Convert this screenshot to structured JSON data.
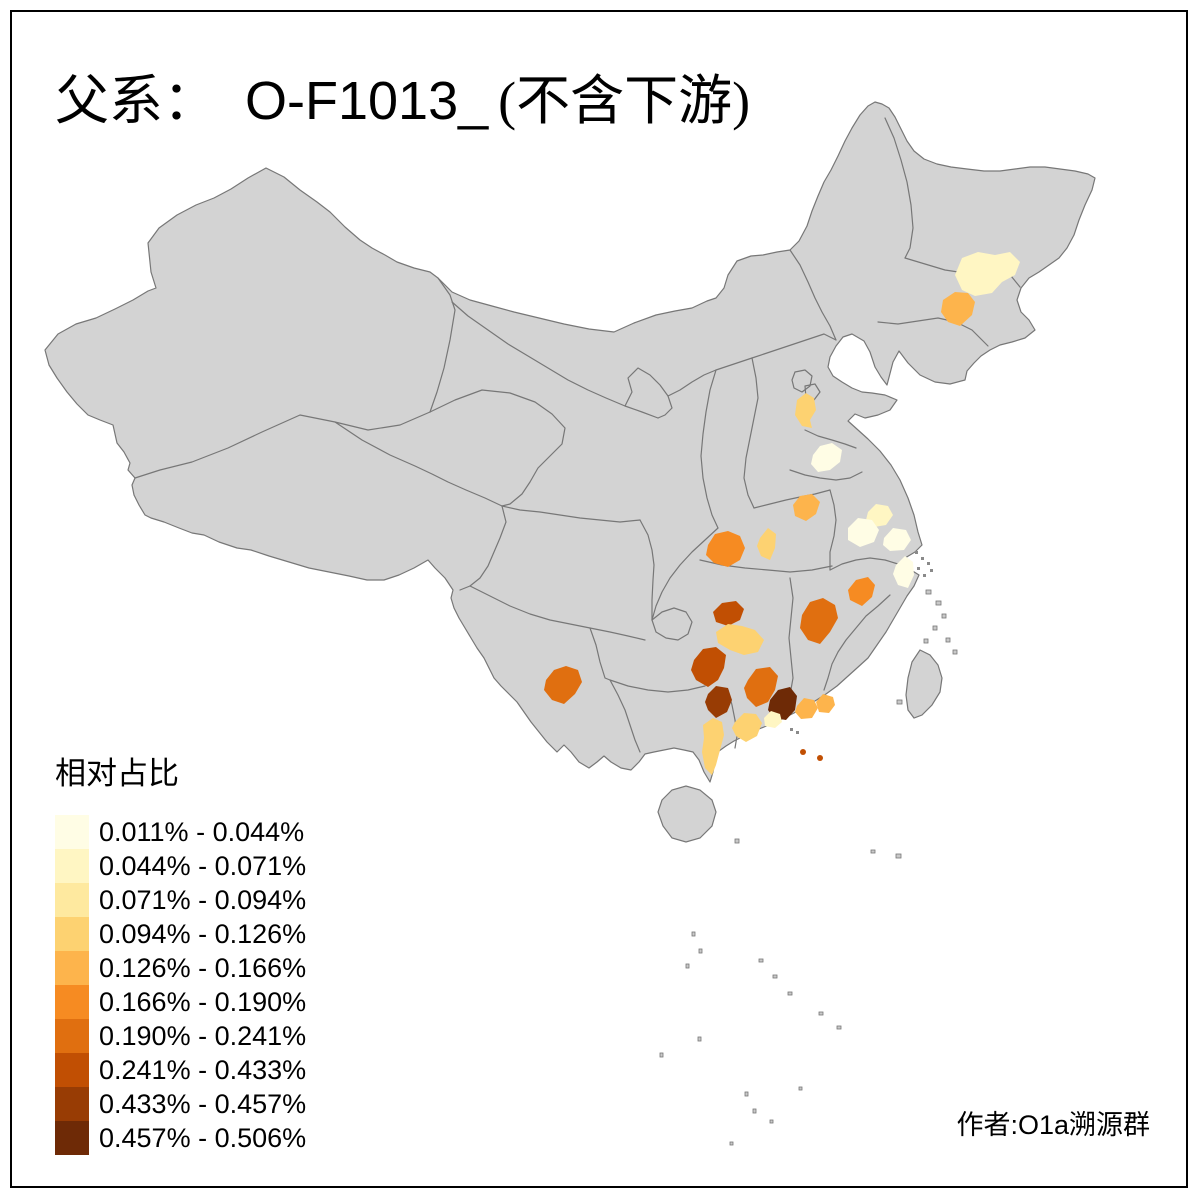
{
  "title": {
    "zh_prefix": "父系：",
    "code": "O-F1013_",
    "zh_suffix": "(不含下游)"
  },
  "legend": {
    "title": "相对占比",
    "classes": [
      {
        "label": "0.011% - 0.044%",
        "color": "#FFFDE5"
      },
      {
        "label": "0.044% - 0.071%",
        "color": "#FFF6C3"
      },
      {
        "label": "0.071% - 0.094%",
        "color": "#FEE99F"
      },
      {
        "label": "0.094% - 0.126%",
        "color": "#FDD271"
      },
      {
        "label": "0.126% - 0.166%",
        "color": "#FDB44C"
      },
      {
        "label": "0.166% - 0.190%",
        "color": "#F68B22"
      },
      {
        "label": "0.190% - 0.241%",
        "color": "#E06F10"
      },
      {
        "label": "0.241% - 0.433%",
        "color": "#C14F03"
      },
      {
        "label": "0.433% - 0.457%",
        "color": "#983C04"
      },
      {
        "label": "0.457% - 0.506%",
        "color": "#6E2A06"
      }
    ]
  },
  "attribution": "作者:O1a溯源群",
  "map": {
    "background": "#FFFFFF",
    "base_fill": "#D3D3D3",
    "border_color": "#777777",
    "frame_color": "#000000",
    "regions": [
      {
        "id": "r1",
        "class_index": 2
      },
      {
        "id": "r2",
        "class_index": 5
      },
      {
        "id": "r3",
        "class_index": 4
      },
      {
        "id": "r4",
        "class_index": 1
      },
      {
        "id": "r5",
        "class_index": 6
      },
      {
        "id": "r6",
        "class_index": 4
      },
      {
        "id": "r7",
        "class_index": 5
      },
      {
        "id": "r8",
        "class_index": 6
      },
      {
        "id": "r9a",
        "class_index": 2
      },
      {
        "id": "r9b",
        "class_index": 1
      },
      {
        "id": "r9c",
        "class_index": 1
      },
      {
        "id": "r10",
        "class_index": 1
      },
      {
        "id": "r11",
        "class_index": 7
      },
      {
        "id": "r12",
        "class_index": 8
      },
      {
        "id": "r13",
        "class_index": 4
      },
      {
        "id": "r14",
        "class_index": 8
      },
      {
        "id": "r15",
        "class_index": 9
      },
      {
        "id": "r16",
        "class_index": 7
      },
      {
        "id": "r17",
        "class_index": 10
      },
      {
        "id": "r18",
        "class_index": 5
      },
      {
        "id": "r19",
        "class_index": 5
      },
      {
        "id": "r20",
        "class_index": 4
      },
      {
        "id": "r21",
        "class_index": 2
      },
      {
        "id": "r22",
        "class_index": 4
      },
      {
        "id": "r23",
        "class_index": 7
      },
      {
        "id": "r24a",
        "class_index": 8
      },
      {
        "id": "r24b",
        "class_index": 8
      }
    ]
  }
}
